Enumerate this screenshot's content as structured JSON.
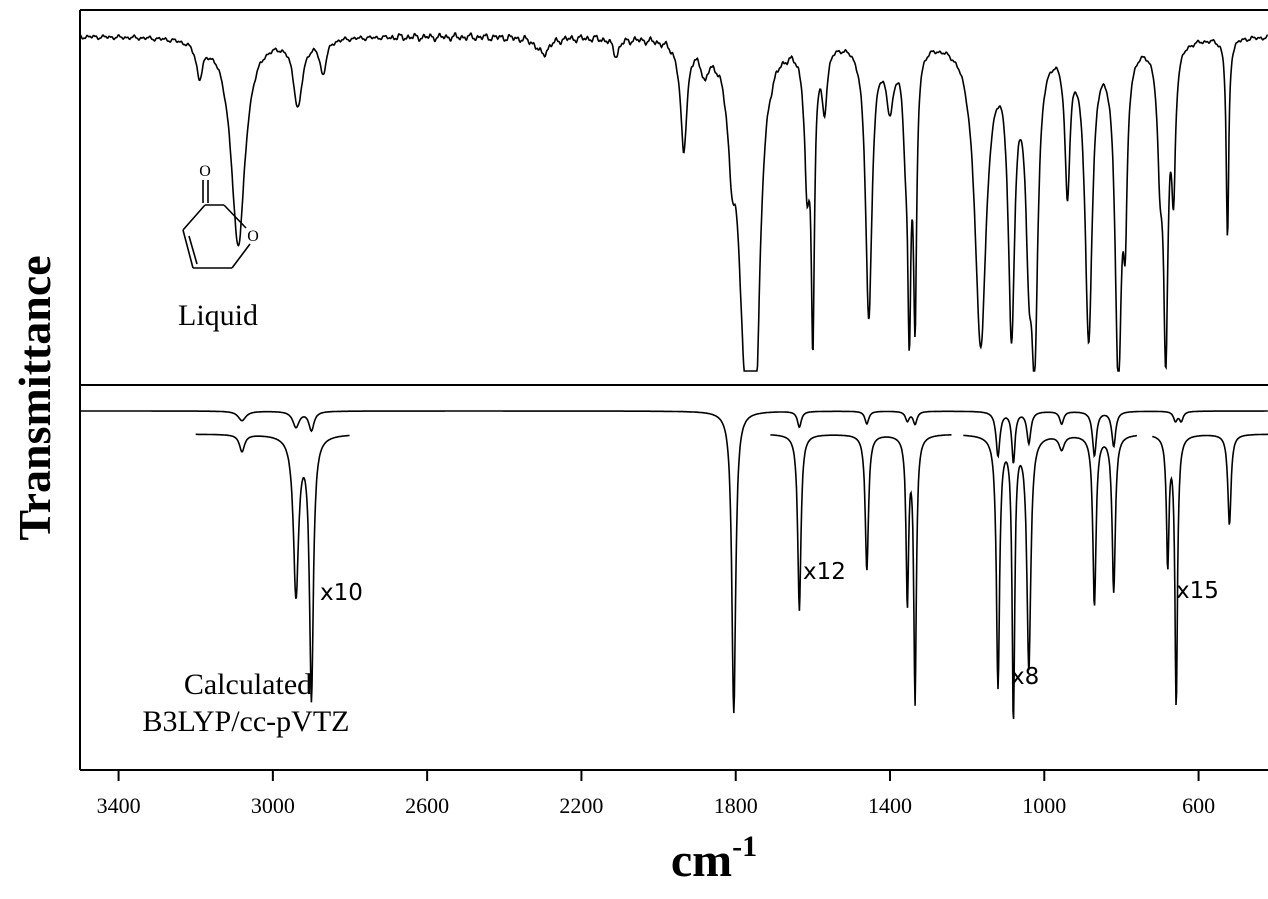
{
  "chart_data": {
    "type": "line",
    "xlabel": "cm",
    "xlabel_superscript": "-1",
    "ylabel": "Transmittance",
    "xlim": [
      3500,
      420
    ],
    "x_ticks": [
      3400,
      3000,
      2600,
      2200,
      1800,
      1400,
      1000,
      600
    ],
    "x_tick_labels": [
      "3400",
      "3000",
      "2600",
      "2200",
      "1800",
      "1400",
      "1000",
      "600"
    ],
    "grid": false,
    "panels": [
      {
        "label": "Liquid",
        "molecule_atoms": [
          "O",
          "O"
        ],
        "baseline": 0.97,
        "peaks": [
          [
            3190,
            0.1,
            10
          ],
          [
            3090,
            0.62,
            22
          ],
          [
            2935,
            0.2,
            14
          ],
          [
            2870,
            0.1,
            10
          ],
          [
            2300,
            0.05,
            20
          ],
          [
            2110,
            0.05,
            10
          ],
          [
            1935,
            0.32,
            10
          ],
          [
            1880,
            0.08,
            10
          ],
          [
            1810,
            0.22,
            12
          ],
          [
            1775,
            0.85,
            20
          ],
          [
            1748,
            0.8,
            14
          ],
          [
            1615,
            0.4,
            8
          ],
          [
            1600,
            0.82,
            5
          ],
          [
            1570,
            0.18,
            8
          ],
          [
            1455,
            0.82,
            10
          ],
          [
            1400,
            0.18,
            12
          ],
          [
            1360,
            0.22,
            8
          ],
          [
            1350,
            0.75,
            5
          ],
          [
            1335,
            0.78,
            5
          ],
          [
            1165,
            0.9,
            18
          ],
          [
            1085,
            0.82,
            10
          ],
          [
            1040,
            0.48,
            10
          ],
          [
            1025,
            0.82,
            10
          ],
          [
            940,
            0.42,
            8
          ],
          [
            885,
            0.88,
            11
          ],
          [
            808,
            0.98,
            10
          ],
          [
            790,
            0.42,
            6
          ],
          [
            700,
            0.32,
            8
          ],
          [
            685,
            0.88,
            7
          ],
          [
            665,
            0.4,
            6
          ],
          [
            525,
            0.6,
            4
          ]
        ]
      },
      {
        "label": "Calculated",
        "method": "B3LYP/cc-pVTZ",
        "baseline": 1.0,
        "main_peaks": [
          [
            3080,
            0.03,
            12
          ],
          [
            2940,
            0.05,
            10
          ],
          [
            2900,
            0.06,
            8
          ],
          [
            1805,
            0.95,
            6
          ],
          [
            1635,
            0.05,
            6
          ],
          [
            1460,
            0.04,
            6
          ],
          [
            1355,
            0.03,
            6
          ],
          [
            1335,
            0.04,
            6
          ],
          [
            1120,
            0.14,
            6
          ],
          [
            1080,
            0.16,
            5
          ],
          [
            1040,
            0.1,
            6
          ],
          [
            955,
            0.04,
            6
          ],
          [
            870,
            0.14,
            6
          ],
          [
            820,
            0.11,
            6
          ],
          [
            660,
            0.03,
            6
          ],
          [
            645,
            0.03,
            6
          ]
        ],
        "scaled_segments": [
          {
            "label": "x10",
            "x_range": [
              3200,
              2800
            ],
            "peaks": [
              [
                3080,
                0.06,
                8
              ],
              [
                2940,
                0.56,
                8
              ],
              [
                2900,
                0.92,
                6
              ]
            ]
          },
          {
            "label": "x12",
            "x_range": [
              1710,
              1240
            ],
            "peaks": [
              [
                1635,
                0.62,
                5
              ],
              [
                1460,
                0.48,
                5
              ],
              [
                1355,
                0.58,
                4
              ],
              [
                1335,
                0.93,
                4
              ]
            ]
          },
          {
            "label": "x8",
            "x_range": [
              1210,
              760
            ],
            "peaks": [
              [
                1120,
                0.88,
                5
              ],
              [
                1080,
                1.0,
                4
              ],
              [
                1040,
                0.82,
                6
              ],
              [
                955,
                0.05,
                8
              ],
              [
                870,
                0.6,
                5
              ],
              [
                820,
                0.55,
                5
              ]
            ]
          },
          {
            "label": "x15",
            "x_range": [
              720,
              420
            ],
            "peaks": [
              [
                680,
                0.45,
                4
              ],
              [
                658,
                0.95,
                4
              ],
              [
                520,
                0.32,
                5
              ]
            ]
          }
        ]
      }
    ]
  }
}
